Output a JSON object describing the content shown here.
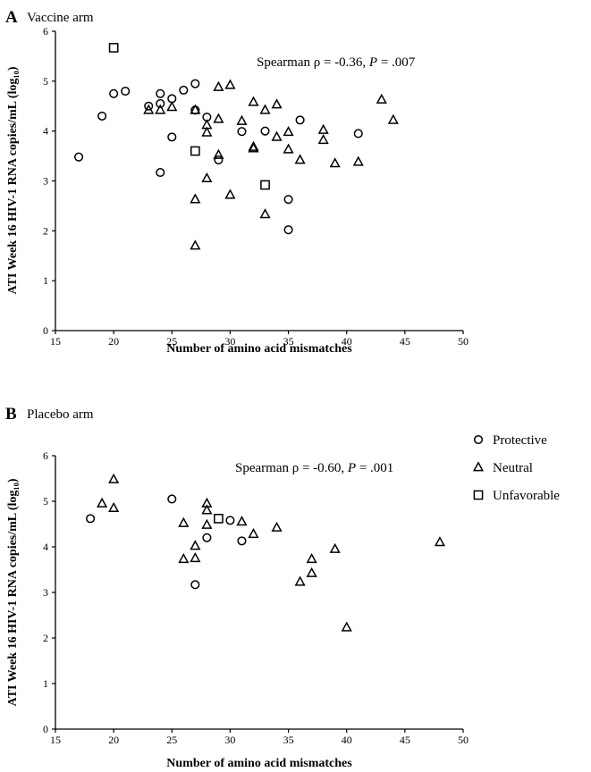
{
  "chart_data": [
    {
      "type": "scatter",
      "panel_label": "A",
      "title": "Vaccine arm",
      "xlabel": "Number of amino acid mismatches",
      "ylabel": "ATI Week 16 HIV-1 RNA copies/mL (log₁₀)",
      "xlim": [
        15,
        50
      ],
      "ylim": [
        0,
        6
      ],
      "xticks": [
        15,
        20,
        25,
        30,
        35,
        40,
        45,
        50
      ],
      "yticks": [
        0,
        1,
        2,
        3,
        4,
        5,
        6
      ],
      "annotation": {
        "prefix": "Spearman ρ = -0.36, ",
        "p_symbol": "P",
        "suffix": " = .007"
      },
      "legend": null,
      "series": [
        {
          "name": "Protective",
          "marker": "circle",
          "x": [
            17,
            19,
            20,
            21,
            23,
            24,
            24,
            24,
            25,
            25,
            26,
            27,
            27,
            28,
            29,
            31,
            33,
            35,
            35,
            36,
            41
          ],
          "y": [
            3.48,
            4.3,
            4.75,
            4.8,
            4.5,
            4.75,
            4.55,
            3.17,
            4.65,
            3.88,
            4.82,
            4.95,
            4.42,
            4.28,
            3.42,
            3.99,
            4.0,
            2.63,
            2.02,
            4.22,
            3.95
          ]
        },
        {
          "name": "Neutral",
          "marker": "triangle",
          "x": [
            23,
            24,
            25,
            27,
            27,
            27,
            28,
            28,
            28,
            29,
            29,
            29,
            30,
            30,
            31,
            32,
            32,
            32,
            33,
            33,
            34,
            34,
            35,
            35,
            36,
            38,
            38,
            39,
            41,
            43,
            44
          ],
          "y": [
            4.42,
            4.42,
            4.48,
            4.42,
            2.63,
            1.7,
            4.12,
            3.97,
            3.05,
            4.88,
            4.24,
            3.52,
            4.92,
            2.72,
            4.2,
            4.58,
            3.68,
            3.65,
            4.42,
            2.33,
            4.53,
            3.88,
            3.98,
            3.63,
            3.42,
            4.02,
            3.82,
            3.35,
            3.38,
            4.63,
            4.22
          ]
        },
        {
          "name": "Unfavorable",
          "marker": "square",
          "x": [
            20,
            27,
            33
          ],
          "y": [
            5.67,
            3.6,
            2.92
          ]
        }
      ]
    },
    {
      "type": "scatter",
      "panel_label": "B",
      "title": "Placebo arm",
      "xlabel": "Number of amino acid mismatches",
      "ylabel": "ATI Week 16 HIV-1 RNA copies/mL (log₁₀)",
      "xlim": [
        15,
        50
      ],
      "ylim": [
        0,
        6
      ],
      "xticks": [
        15,
        20,
        25,
        30,
        35,
        40,
        45,
        50
      ],
      "yticks": [
        0,
        1,
        2,
        3,
        4,
        5,
        6
      ],
      "annotation": {
        "prefix": "Spearman ρ = -0.60, ",
        "p_symbol": "P",
        "suffix": " = .001"
      },
      "legend": [
        "Protective",
        "Neutral",
        "Unfavorable"
      ],
      "series": [
        {
          "name": "Protective",
          "marker": "circle",
          "x": [
            18,
            25,
            27,
            28,
            30,
            31
          ],
          "y": [
            4.62,
            5.05,
            3.17,
            4.2,
            4.58,
            4.13
          ]
        },
        {
          "name": "Neutral",
          "marker": "triangle",
          "x": [
            19,
            20,
            20,
            26,
            26,
            27,
            27,
            28,
            28,
            28,
            31,
            32,
            34,
            36,
            37,
            37,
            39,
            40,
            48
          ],
          "y": [
            4.95,
            5.48,
            4.85,
            4.52,
            3.73,
            4.02,
            3.75,
            4.95,
            4.8,
            4.48,
            4.55,
            4.28,
            4.42,
            3.23,
            3.73,
            3.42,
            3.95,
            2.23,
            4.1
          ]
        },
        {
          "name": "Unfavorable",
          "marker": "square",
          "x": [
            29
          ],
          "y": [
            4.62
          ]
        }
      ]
    }
  ]
}
